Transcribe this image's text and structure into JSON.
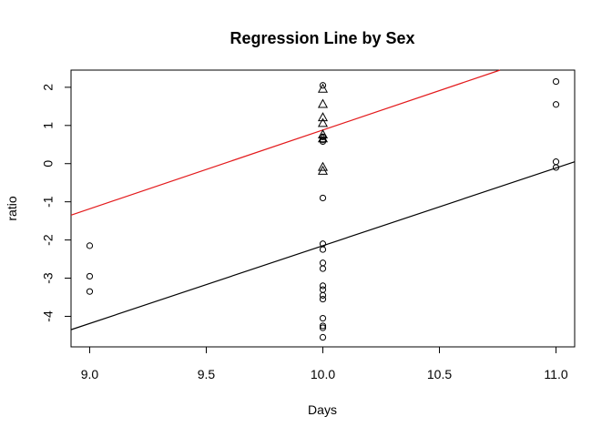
{
  "chart_data": {
    "type": "scatter",
    "title": "Regression Line by Sex",
    "xlabel": "Days",
    "ylabel": "ratio",
    "xlim": [
      8.92,
      11.08
    ],
    "ylim": [
      -4.8,
      2.45
    ],
    "x_ticks": [
      9.0,
      9.5,
      10.0,
      10.5,
      11.0
    ],
    "x_tick_labels": [
      "9.0",
      "9.5",
      "10.0",
      "10.5",
      "11.0"
    ],
    "y_ticks": [
      -4,
      -3,
      -2,
      -1,
      0,
      1,
      2
    ],
    "y_tick_labels": [
      "-4",
      "-3",
      "-2",
      "-1",
      "0",
      "1",
      "2"
    ],
    "colors": {
      "red_line": "#e31a1c",
      "black_line": "#000000",
      "points": "#000000"
    },
    "series": [
      {
        "name": "circles",
        "marker": "circle",
        "points": [
          [
            9.0,
            -2.15
          ],
          [
            9.0,
            -2.95
          ],
          [
            9.0,
            -3.35
          ],
          [
            10.0,
            2.05
          ],
          [
            10.0,
            0.7
          ],
          [
            10.0,
            0.62
          ],
          [
            10.0,
            0.58
          ],
          [
            10.0,
            -0.9
          ],
          [
            10.0,
            -2.1
          ],
          [
            10.0,
            -2.25
          ],
          [
            10.0,
            -2.6
          ],
          [
            10.0,
            -2.75
          ],
          [
            10.0,
            -3.2
          ],
          [
            10.0,
            -3.3
          ],
          [
            10.0,
            -3.45
          ],
          [
            10.0,
            -3.55
          ],
          [
            10.0,
            -4.05
          ],
          [
            10.0,
            -4.25
          ],
          [
            10.0,
            -4.3
          ],
          [
            10.0,
            -4.55
          ],
          [
            11.0,
            2.15
          ],
          [
            11.0,
            1.55
          ],
          [
            11.0,
            0.05
          ],
          [
            11.0,
            -0.1
          ]
        ]
      },
      {
        "name": "triangles",
        "marker": "triangle",
        "points": [
          [
            10.0,
            1.95
          ],
          [
            10.0,
            1.55
          ],
          [
            10.0,
            1.2
          ],
          [
            10.0,
            1.05
          ],
          [
            10.0,
            0.75
          ],
          [
            10.0,
            0.65
          ],
          [
            10.0,
            -0.1
          ],
          [
            10.0,
            -0.2
          ]
        ]
      }
    ],
    "lines": [
      {
        "name": "red regression line",
        "color": "#e31a1c",
        "x": [
          8.92,
          10.76
        ],
        "y": [
          -1.35,
          2.45
        ]
      },
      {
        "name": "black regression line",
        "color": "#000000",
        "x": [
          8.92,
          11.08
        ],
        "y": [
          -4.35,
          0.05
        ]
      }
    ]
  }
}
